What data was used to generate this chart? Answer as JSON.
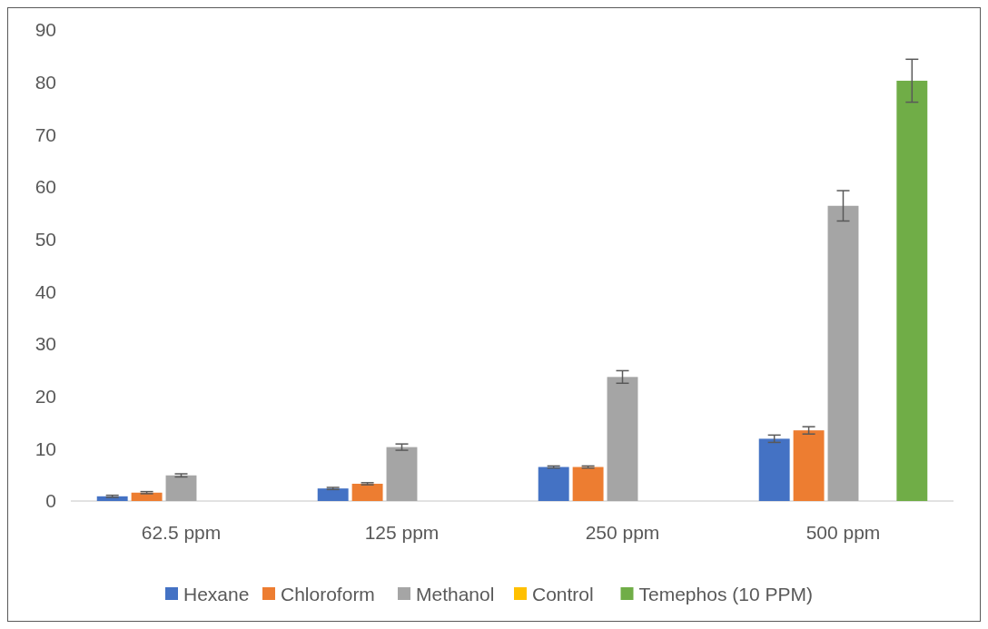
{
  "chart_data": {
    "type": "bar",
    "categories": [
      "62.5 ppm",
      "125 ppm",
      "250 ppm",
      "500 ppm"
    ],
    "series": [
      {
        "name": "Hexane",
        "color": "#4472c4",
        "values": [
          0.9,
          2.4,
          6.5,
          11.9
        ],
        "errors": [
          0.2,
          0.2,
          0.2,
          0.7
        ]
      },
      {
        "name": "Chloroform",
        "color": "#ed7d31",
        "values": [
          1.6,
          3.3,
          6.5,
          13.5
        ],
        "errors": [
          0.2,
          0.2,
          0.2,
          0.7
        ]
      },
      {
        "name": "Methanol",
        "color": "#a5a5a5",
        "values": [
          4.9,
          10.3,
          23.7,
          56.4
        ],
        "errors": [
          0.3,
          0.6,
          1.2,
          2.9
        ]
      },
      {
        "name": "Control",
        "color": "#ffc000",
        "values": [
          0,
          0,
          0,
          0
        ]
      },
      {
        "name": "Temephos (10 PPM)",
        "color": "#70ad47",
        "values": [
          null,
          null,
          null,
          80.3
        ],
        "errors": [
          null,
          null,
          null,
          4.1
        ]
      }
    ],
    "ylim": [
      0,
      90
    ],
    "yticks": [
      0,
      10,
      20,
      30,
      40,
      50,
      60,
      70,
      80,
      90
    ],
    "grid": false,
    "legend": "bottom"
  }
}
